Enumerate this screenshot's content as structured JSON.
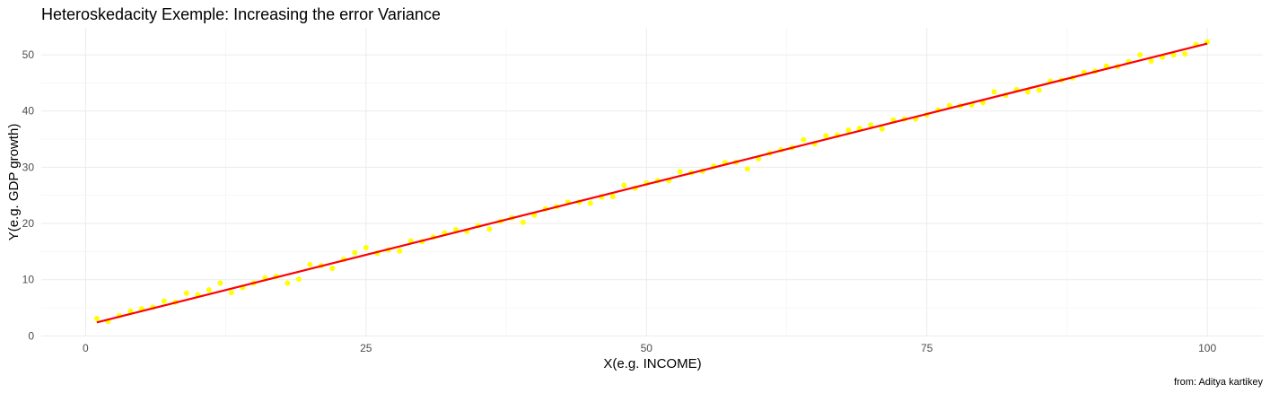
{
  "chart_data": {
    "type": "scatter",
    "title": "Heteroskedacity Exemple: Increasing the error Variance",
    "xlabel": "X(e.g. INCOME)",
    "ylabel": "Y(e.g. GDP growth)",
    "caption": "from: Aditya kartikey",
    "xlim": [
      -3.95,
      104.95
    ],
    "ylim": [
      -0.1,
      54.8
    ],
    "x_ticks": [
      0,
      25,
      50,
      75,
      100
    ],
    "x_tick_labels": [
      "0",
      "25",
      "50",
      "75",
      "100"
    ],
    "y_ticks": [
      0,
      10,
      20,
      30,
      40,
      50
    ],
    "y_tick_labels": [
      "0",
      "10",
      "20",
      "30",
      "40",
      "50"
    ],
    "grid": true,
    "legend": "none",
    "point_color": "#ffff00",
    "line_color": "#ff0000",
    "series": [
      {
        "type": "points",
        "x": [
          1,
          2,
          3,
          4,
          5,
          6,
          7,
          8,
          9,
          10,
          11,
          12,
          13,
          14,
          15,
          16,
          17,
          18,
          19,
          20,
          21,
          22,
          23,
          24,
          25,
          26,
          27,
          28,
          29,
          30,
          31,
          32,
          33,
          34,
          35,
          36,
          37,
          38,
          39,
          40,
          41,
          42,
          43,
          44,
          45,
          46,
          47,
          48,
          49,
          50,
          51,
          52,
          53,
          54,
          55,
          56,
          57,
          58,
          59,
          60,
          61,
          62,
          63,
          64,
          65,
          66,
          67,
          68,
          69,
          70,
          71,
          72,
          73,
          74,
          75,
          76,
          77,
          78,
          79,
          80,
          81,
          82,
          83,
          84,
          85,
          86,
          87,
          88,
          89,
          90,
          91,
          92,
          93,
          94,
          95,
          96,
          97,
          98,
          99,
          100
        ],
        "y": [
          3.1,
          2.6,
          3.6,
          4.4,
          4.8,
          5.1,
          6.2,
          6.0,
          7.6,
          7.3,
          8.2,
          9.4,
          7.7,
          8.6,
          9.4,
          10.3,
          10.6,
          9.4,
          10.1,
          12.7,
          12.5,
          12.0,
          13.6,
          14.8,
          15.7,
          14.7,
          15.3,
          15.1,
          16.9,
          16.8,
          17.6,
          18.3,
          18.9,
          18.6,
          19.6,
          19.0,
          20.4,
          21.0,
          20.2,
          21.5,
          22.6,
          23.0,
          23.8,
          23.8,
          23.6,
          24.7,
          24.8,
          26.8,
          26.3,
          27.2,
          27.6,
          27.6,
          29.2,
          29.0,
          29.3,
          30.2,
          30.8,
          30.9,
          29.7,
          31.5,
          32.5,
          33.1,
          33.5,
          34.9,
          34.2,
          35.6,
          35.7,
          36.6,
          36.9,
          37.5,
          36.8,
          38.4,
          38.6,
          38.6,
          39.3,
          40.2,
          41.0,
          40.9,
          41.1,
          41.5,
          43.4,
          42.8,
          43.8,
          43.4,
          43.7,
          45.3,
          45.5,
          45.9,
          46.9,
          47.1,
          48.0,
          47.9,
          48.8,
          50.0,
          48.9,
          49.6,
          50.0,
          50.2,
          51.8,
          52.3
        ]
      },
      {
        "type": "line",
        "x": [
          1,
          100
        ],
        "y": [
          2.4,
          52.0
        ]
      }
    ]
  }
}
